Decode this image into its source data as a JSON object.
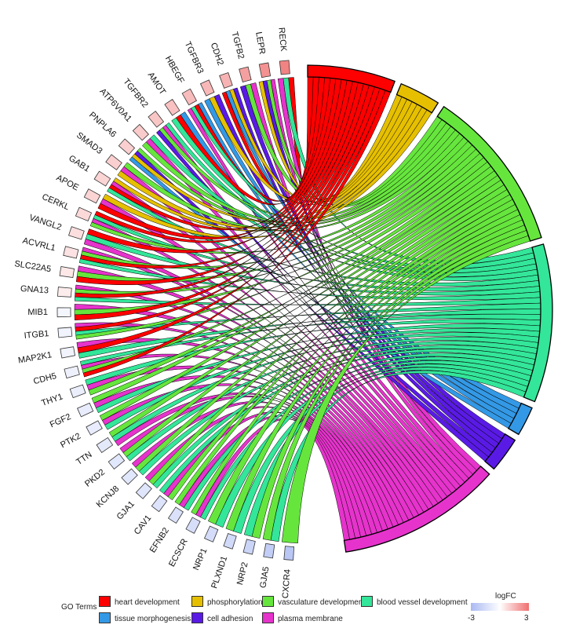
{
  "chart_data": {
    "type": "chord",
    "genes": [
      {
        "name": "RECK",
        "logFC": 2.6
      },
      {
        "name": "LEPR",
        "logFC": 2.3
      },
      {
        "name": "TGFB2",
        "logFC": 2.0
      },
      {
        "name": "CDH2",
        "logFC": 1.6
      },
      {
        "name": "TGFBR3",
        "logFC": 1.5
      },
      {
        "name": "HBEGF",
        "logFC": 1.4
      },
      {
        "name": "AMOT",
        "logFC": 1.3
      },
      {
        "name": "TGFBR2",
        "logFC": 1.2
      },
      {
        "name": "ATP6V0A1",
        "logFC": 1.1
      },
      {
        "name": "PNPLA6",
        "logFC": 1.0
      },
      {
        "name": "SMAD3",
        "logFC": 1.0
      },
      {
        "name": "GAB1",
        "logFC": 0.9
      },
      {
        "name": "APOE",
        "logFC": 0.9
      },
      {
        "name": "CERKL",
        "logFC": 0.8
      },
      {
        "name": "VANGL2",
        "logFC": 0.7
      },
      {
        "name": "ACVRL1",
        "logFC": 0.6
      },
      {
        "name": "SLC22A5",
        "logFC": 0.5
      },
      {
        "name": "GNA13",
        "logFC": 0.4
      },
      {
        "name": "MIB1",
        "logFC": -0.4
      },
      {
        "name": "ITGB1",
        "logFC": -0.5
      },
      {
        "name": "MAP2K1",
        "logFC": -0.5
      },
      {
        "name": "CDH5",
        "logFC": -0.6
      },
      {
        "name": "THY1",
        "logFC": -0.7
      },
      {
        "name": "FGF2",
        "logFC": -0.8
      },
      {
        "name": "PTK2",
        "logFC": -0.8
      },
      {
        "name": "TTN",
        "logFC": -0.9
      },
      {
        "name": "PKD2",
        "logFC": -1.0
      },
      {
        "name": "KCNJ8",
        "logFC": -1.0
      },
      {
        "name": "GJA1",
        "logFC": -1.1
      },
      {
        "name": "CAV1",
        "logFC": -1.2
      },
      {
        "name": "EFNB2",
        "logFC": -1.3
      },
      {
        "name": "ECSCR",
        "logFC": -1.4
      },
      {
        "name": "NRP1",
        "logFC": -1.5
      },
      {
        "name": "PLXND1",
        "logFC": -1.6
      },
      {
        "name": "NRP2",
        "logFC": -1.8
      },
      {
        "name": "GJA5",
        "logFC": -2.1
      },
      {
        "name": "CXCR4",
        "logFC": -2.4
      }
    ],
    "terms": [
      {
        "name": "heart development",
        "color": "#ff0000",
        "count": 15
      },
      {
        "name": "phosphorylation",
        "color": "#e6c000",
        "count": 7
      },
      {
        "name": "vasculature development",
        "color": "#66e63d",
        "count": 28
      },
      {
        "name": "blood vessel development",
        "color": "#33e699",
        "count": 27
      },
      {
        "name": "tissue morphogenesis",
        "color": "#3399e6",
        "count": 5
      },
      {
        "name": "cell adhesion",
        "color": "#5a1ae6",
        "count": 6
      },
      {
        "name": "plasma membrane",
        "color": "#e633cc",
        "count": 28
      }
    ],
    "legend": {
      "title": "GO Terms",
      "colorbar_title": "logFC",
      "colorbar_min": "-3",
      "colorbar_max": "3",
      "colorbar_low_color": "#a9b9f2",
      "colorbar_high_color": "#f07070"
    }
  }
}
